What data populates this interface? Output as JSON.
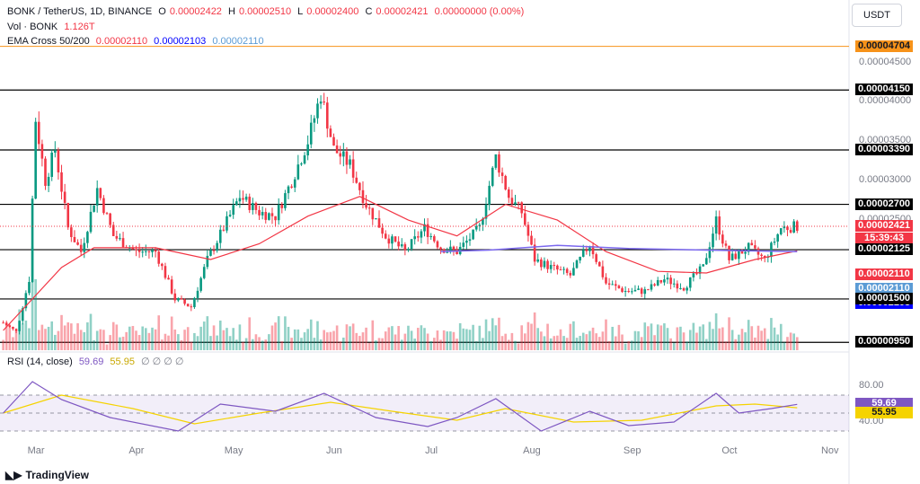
{
  "legend": {
    "symbol": "BONK / TetherUS, 1D, BINANCE",
    "o_label": "O",
    "o": "0.00002422",
    "h_label": "H",
    "h": "0.00002510",
    "l_label": "L",
    "l": "0.00002400",
    "c_label": "C",
    "c": "0.00002421",
    "change": "0.00000000 (0.00%)",
    "vol_label": "Vol · BONK",
    "vol": "1.126T",
    "ema_label": "EMA Cross 50/200",
    "ema1": "0.00002110",
    "ema2": "0.00002103",
    "ema3": "0.00002110",
    "rsi_label": "RSI (14, close)",
    "rsi1": "59.69",
    "rsi2": "55.95",
    "rsi_extra": "∅ ∅ ∅ ∅"
  },
  "currency_button": "USDT",
  "price_labels": [
    {
      "text": "0.00004704",
      "price": 4.704e-05,
      "bg": "#f7931a",
      "fg": "#131722"
    },
    {
      "text": "0.00004150",
      "price": 4.15e-05,
      "bg": "#000000",
      "fg": "#ffffff"
    },
    {
      "text": "0.00003390",
      "price": 3.39e-05,
      "bg": "#000000",
      "fg": "#ffffff"
    },
    {
      "text": "0.00002700",
      "price": 2.7e-05,
      "bg": "#000000",
      "fg": "#ffffff"
    },
    {
      "text": "0.00002421",
      "price": 2.421e-05,
      "bg": "#f23645",
      "fg": "#ffffff"
    },
    {
      "text": "15:39:43",
      "price": 2.421e-05,
      "bg": "#f23645",
      "fg": "#ffffff",
      "below": true
    },
    {
      "text": "0.00002125",
      "price": 2.125e-05,
      "bg": "#000000",
      "fg": "#ffffff"
    },
    {
      "text": "0.00002110",
      "price": 2.11e-05,
      "bg": "#f23645",
      "fg": "#ffffff",
      "stack": 1
    },
    {
      "text": "0.00002110",
      "price": 2.11e-05,
      "bg": "#5b9bd5",
      "fg": "#ffffff",
      "stack": 2
    },
    {
      "text": "0.00002103",
      "price": 2.103e-05,
      "bg": "#0000ff",
      "fg": "#ffffff",
      "stack": 3
    },
    {
      "text": "0.00001500",
      "price": 1.5e-05,
      "bg": "#000000",
      "fg": "#ffffff"
    },
    {
      "text": "0.00000950",
      "price": 9.5e-06,
      "bg": "#000000",
      "fg": "#ffffff"
    }
  ],
  "axis_ticks": [
    {
      "text": "0.00004500",
      "price": 4.5e-05
    },
    {
      "text": "0.00004000",
      "price": 4e-05
    },
    {
      "text": "0.00003500",
      "price": 3.5e-05
    },
    {
      "text": "0.00003000",
      "price": 3e-05
    },
    {
      "text": "0.00002500",
      "price": 2.5e-05
    }
  ],
  "rsi_ticks": [
    {
      "text": "80.00",
      "value": 80
    },
    {
      "text": "40.00",
      "value": 40
    }
  ],
  "x_labels": [
    "Mar",
    "Apr",
    "May",
    "Jun",
    "Jul",
    "Aug",
    "Sep",
    "Oct",
    "Nov"
  ],
  "branding": "TradingView",
  "colors": {
    "up": "#089981",
    "down": "#f23645",
    "ema50": "#f23645",
    "ema200": "#7b68ee",
    "rsi": "#7e57c2",
    "rsi_ma": "#f5d300"
  },
  "chart_data": {
    "type": "candlestick",
    "title": "BONK / TetherUS, 1D, BINANCE",
    "x_range": [
      "2023-02-19",
      "2023-11-08"
    ],
    "y_range": [
      8.5e-06,
      4.95e-05
    ],
    "horizontal_levels": [
      4.704e-05,
      4.15e-05,
      3.39e-05,
      2.7e-05,
      2.125e-05,
      1.5e-05,
      9.5e-06
    ],
    "close_series": [
      [
        "2023-02-20",
        1.2e-05
      ],
      [
        "2023-02-24",
        1.08e-05
      ],
      [
        "2023-02-28",
        1.75e-05
      ],
      [
        "2023-03-02",
        3.78e-05
      ],
      [
        "2023-03-05",
        3e-05
      ],
      [
        "2023-03-08",
        3.4e-05
      ],
      [
        "2023-03-12",
        2.4e-05
      ],
      [
        "2023-03-16",
        2.1e-05
      ],
      [
        "2023-03-21",
        2.9e-05
      ],
      [
        "2023-03-26",
        2.3e-05
      ],
      [
        "2023-04-02",
        2.1e-05
      ],
      [
        "2023-04-08",
        2.1e-05
      ],
      [
        "2023-04-14",
        1.5e-05
      ],
      [
        "2023-04-19",
        1.4e-05
      ],
      [
        "2023-04-24",
        2e-05
      ],
      [
        "2023-04-29",
        2.4e-05
      ],
      [
        "2023-05-04",
        2.8e-05
      ],
      [
        "2023-05-10",
        2.6e-05
      ],
      [
        "2023-05-15",
        2.55e-05
      ],
      [
        "2023-05-20",
        3e-05
      ],
      [
        "2023-05-25",
        3.5e-05
      ],
      [
        "2023-05-29",
        4.1e-05
      ],
      [
        "2023-06-02",
        3.4e-05
      ],
      [
        "2023-06-07",
        3.2e-05
      ],
      [
        "2023-06-12",
        2.7e-05
      ],
      [
        "2023-06-18",
        2.3e-05
      ],
      [
        "2023-06-24",
        2.1e-05
      ],
      [
        "2023-06-30",
        2.4e-05
      ],
      [
        "2023-07-05",
        2.15e-05
      ],
      [
        "2023-07-10",
        2.1e-05
      ],
      [
        "2023-07-17",
        2.4e-05
      ],
      [
        "2023-07-22",
        3.3e-05
      ],
      [
        "2023-07-26",
        2.8e-05
      ],
      [
        "2023-07-30",
        2.6e-05
      ],
      [
        "2023-08-03",
        2e-05
      ],
      [
        "2023-08-08",
        1.9e-05
      ],
      [
        "2023-08-14",
        1.8e-05
      ],
      [
        "2023-08-20",
        2.2e-05
      ],
      [
        "2023-08-25",
        1.7e-05
      ],
      [
        "2023-08-31",
        1.6e-05
      ],
      [
        "2023-09-06",
        1.6e-05
      ],
      [
        "2023-09-12",
        1.75e-05
      ],
      [
        "2023-09-18",
        1.65e-05
      ],
      [
        "2023-09-24",
        1.9e-05
      ],
      [
        "2023-09-28",
        2.5e-05
      ],
      [
        "2023-10-02",
        2e-05
      ],
      [
        "2023-10-08",
        2.15e-05
      ],
      [
        "2023-10-13",
        2e-05
      ],
      [
        "2023-10-18",
        2.4e-05
      ],
      [
        "2023-10-23",
        2.42e-05
      ]
    ],
    "ema50_series": [
      [
        "2023-02-20",
        1.1e-05
      ],
      [
        "2023-03-10",
        1.9e-05
      ],
      [
        "2023-03-20",
        2.15e-05
      ],
      [
        "2023-04-08",
        2.15e-05
      ],
      [
        "2023-04-25",
        2e-05
      ],
      [
        "2023-05-10",
        2.2e-05
      ],
      [
        "2023-05-25",
        2.55e-05
      ],
      [
        "2023-06-10",
        2.8e-05
      ],
      [
        "2023-06-25",
        2.5e-05
      ],
      [
        "2023-07-10",
        2.3e-05
      ],
      [
        "2023-07-25",
        2.7e-05
      ],
      [
        "2023-08-10",
        2.5e-05
      ],
      [
        "2023-08-25",
        2.1e-05
      ],
      [
        "2023-09-10",
        1.85e-05
      ],
      [
        "2023-09-25",
        1.83e-05
      ],
      [
        "2023-10-10",
        2e-05
      ],
      [
        "2023-10-23",
        2.11e-05
      ]
    ],
    "ema200_series": [
      [
        "2023-07-05",
        2.1e-05
      ],
      [
        "2023-07-20",
        2.12e-05
      ],
      [
        "2023-08-10",
        2.18e-05
      ],
      [
        "2023-09-01",
        2.14e-05
      ],
      [
        "2023-09-25",
        2.12e-05
      ],
      [
        "2023-10-23",
        2.1e-05
      ]
    ],
    "rsi_series": [
      [
        "2023-02-20",
        50
      ],
      [
        "2023-03-01",
        85
      ],
      [
        "2023-03-10",
        65
      ],
      [
        "2023-03-25",
        45
      ],
      [
        "2023-04-15",
        30
      ],
      [
        "2023-04-28",
        60
      ],
      [
        "2023-05-15",
        52
      ],
      [
        "2023-05-30",
        72
      ],
      [
        "2023-06-15",
        45
      ],
      [
        "2023-07-01",
        35
      ],
      [
        "2023-07-10",
        45
      ],
      [
        "2023-07-22",
        66
      ],
      [
        "2023-08-05",
        30
      ],
      [
        "2023-08-20",
        52
      ],
      [
        "2023-09-01",
        36
      ],
      [
        "2023-09-15",
        40
      ],
      [
        "2023-09-28",
        72
      ],
      [
        "2023-10-05",
        50
      ],
      [
        "2023-10-15",
        55
      ],
      [
        "2023-10-23",
        59.69
      ]
    ],
    "rsi_ma_series": [
      [
        "2023-02-20",
        50
      ],
      [
        "2023-03-10",
        70
      ],
      [
        "2023-04-01",
        55
      ],
      [
        "2023-04-20",
        38
      ],
      [
        "2023-05-10",
        50
      ],
      [
        "2023-06-01",
        62
      ],
      [
        "2023-06-20",
        52
      ],
      [
        "2023-07-10",
        42
      ],
      [
        "2023-07-25",
        55
      ],
      [
        "2023-08-15",
        40
      ],
      [
        "2023-09-05",
        42
      ],
      [
        "2023-09-28",
        58
      ],
      [
        "2023-10-10",
        60
      ],
      [
        "2023-10-23",
        55.95
      ]
    ]
  }
}
